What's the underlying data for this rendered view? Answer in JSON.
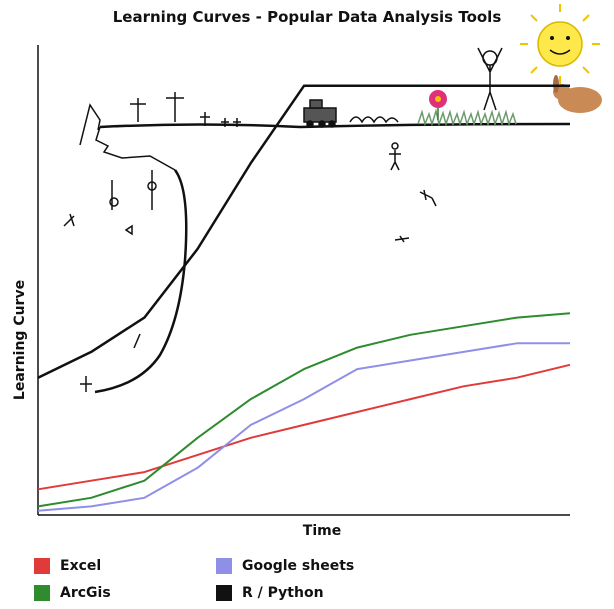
{
  "chart_data": {
    "type": "line",
    "title": "Learning Curves - Popular Data Analysis Tools",
    "xlabel": "Time",
    "ylabel": "Learning Curve",
    "x": [
      0,
      1,
      2,
      3,
      4,
      5,
      6,
      7,
      8,
      9,
      10
    ],
    "series": [
      {
        "name": "Excel",
        "color": "#e03a3a",
        "values": [
          0.06,
          0.08,
          0.1,
          0.14,
          0.18,
          0.21,
          0.24,
          0.27,
          0.3,
          0.32,
          0.35
        ]
      },
      {
        "name": "ArcGis",
        "color": "#2e8b2e",
        "values": [
          0.02,
          0.04,
          0.08,
          0.18,
          0.27,
          0.34,
          0.39,
          0.42,
          0.44,
          0.46,
          0.47
        ]
      },
      {
        "name": "Google sheets",
        "color": "#8f8fe8",
        "values": [
          0.01,
          0.02,
          0.04,
          0.11,
          0.21,
          0.27,
          0.34,
          0.36,
          0.38,
          0.4,
          0.4
        ]
      },
      {
        "name": "R / Python",
        "color": "#111111",
        "values": [
          0.32,
          0.38,
          0.46,
          0.62,
          0.82,
          1.0,
          1.0,
          1.0,
          1.0,
          1.0,
          1.0
        ]
      }
    ],
    "ylim": [
      0,
      1.2
    ],
    "grid": false,
    "legend": "bottom-left"
  }
}
